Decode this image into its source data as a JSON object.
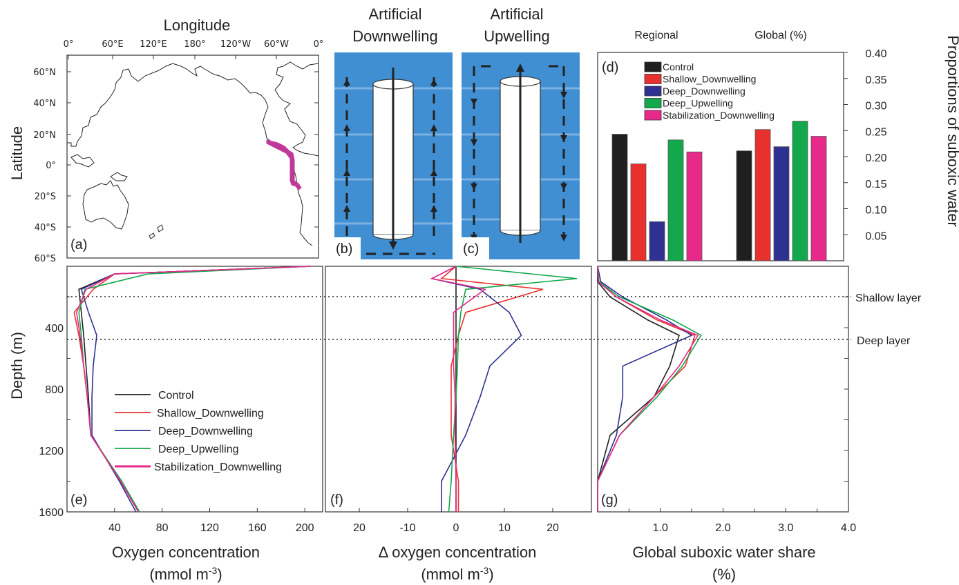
{
  "colors": {
    "Control": "#1f1f1f",
    "Shallow_Downwelling": "#e8302f",
    "Deep_Downwelling": "#2e3192",
    "Deep_Upwelling": "#12a84b",
    "Stabilization_Downwelling": "#e7298a",
    "diagram_bg": "#3f8fd2",
    "coast_highlight": "#c0399a"
  },
  "map": {
    "title": "Longitude",
    "ylabel": "Latitude",
    "panel": "(a)",
    "lon_ticks": [
      "0°",
      "60°E",
      "120°E",
      "180°",
      "120°W",
      "60°W",
      "0°"
    ],
    "lat_ticks": [
      "60°N",
      "40°N",
      "20°N",
      "0°",
      "20°S",
      "40°S",
      "60°S"
    ]
  },
  "diagram_b": {
    "title_line1": "Artificial",
    "title_line2": "Downwelling",
    "panel": "(b)"
  },
  "diagram_c": {
    "title_line1": "Artificial",
    "title_line2": "Upwelling",
    "panel": "(c)"
  },
  "panel_d": {
    "panel": "(d)",
    "label_regional": "Regional",
    "label_global": "Global (%)",
    "ylabel": "Proportions of suboxic water",
    "yticks": [
      "0.40",
      "0.35",
      "0.30",
      "0.25",
      "0.20",
      "0.15",
      "0.10",
      "0.05"
    ]
  },
  "panel_e": {
    "panel": "(e)",
    "xlabel": "Oxygen concentration",
    "xunit_pre": "(mmol m",
    "xunit_sup": "-3",
    "xunit_post": ")",
    "ylabel": "Depth (m)",
    "xticks": [
      "40",
      "80",
      "120",
      "160",
      "200"
    ],
    "yticks": [
      "400",
      "800",
      "1200",
      "1600"
    ]
  },
  "panel_f": {
    "panel": "(f)",
    "xlabel": "Δ oxygen concentration",
    "xunit_pre": "(mmol m",
    "xunit_sup": "-3",
    "xunit_post": ")",
    "xticks": [
      "20",
      "-10",
      "0",
      "10",
      "20"
    ]
  },
  "panel_g": {
    "panel": "(g)",
    "xlabel": "Global suboxic water share",
    "xunit": "(%)",
    "xticks": [
      "1.0",
      "2.0",
      "3.0",
      "4.0"
    ],
    "label_shallow": "Shallow layer",
    "label_deep": "Deep layer"
  },
  "chart_data": [
    {
      "type": "bar",
      "panel": "(d)",
      "categories": [
        "Regional",
        "Global (%)"
      ],
      "series": [
        {
          "name": "Control",
          "values": [
            0.243,
            0.211
          ]
        },
        {
          "name": "Shallow_Downwelling",
          "values": [
            0.186,
            0.252
          ]
        },
        {
          "name": "Deep_Downwelling",
          "values": [
            0.075,
            0.219
          ]
        },
        {
          "name": "Deep_Upwelling",
          "values": [
            0.232,
            0.268
          ]
        },
        {
          "name": "Stabilization_Downwelling",
          "values": [
            0.209,
            0.239
          ]
        }
      ],
      "ylabel": "Proportions of suboxic water",
      "ylim": [
        0,
        0.4
      ],
      "legend": "top-left"
    },
    {
      "type": "line",
      "panel": "(e)",
      "xlabel": "Oxygen concentration",
      "ylabel": "Depth (m)",
      "xlim": [
        0,
        215
      ],
      "ylim": [
        1600,
        0
      ],
      "depth": [
        0,
        50,
        150,
        300,
        450,
        650,
        850,
        1100,
        1400,
        1600
      ],
      "series": [
        {
          "name": "Control",
          "values": [
            205,
            40,
            10,
            12,
            14,
            16,
            18,
            20,
            45,
            60
          ]
        },
        {
          "name": "Shallow_Downwelling",
          "values": [
            205,
            40,
            22,
            6,
            10,
            14,
            17,
            20,
            45,
            60
          ]
        },
        {
          "name": "Deep_Downwelling",
          "values": [
            205,
            40,
            12,
            18,
            25,
            22,
            21,
            21,
            44,
            58
          ]
        },
        {
          "name": "Deep_Upwelling",
          "values": [
            205,
            68,
            15,
            10,
            12,
            14,
            17,
            20,
            46,
            61
          ]
        },
        {
          "name": "Stabilization_Downwelling",
          "values": [
            205,
            40,
            16,
            8,
            11,
            14,
            17,
            20,
            45,
            60
          ]
        }
      ]
    },
    {
      "type": "line",
      "panel": "(f)",
      "xlabel": "Δ oxygen concentration",
      "xlim": [
        -29,
        27
      ],
      "ylim": [
        1600,
        0
      ],
      "depth": [
        0,
        80,
        150,
        300,
        450,
        650,
        850,
        1100,
        1400,
        1600
      ],
      "series": [
        {
          "name": "Control",
          "values": [
            0,
            0,
            0,
            0,
            0,
            0,
            0,
            0,
            0,
            0
          ]
        },
        {
          "name": "Shallow_Downwelling",
          "values": [
            0,
            -3,
            18,
            2,
            0.5,
            -1,
            -1,
            -1,
            0.5,
            0.5
          ]
        },
        {
          "name": "Deep_Downwelling",
          "values": [
            0,
            -5,
            5,
            11,
            13.5,
            7,
            5,
            2,
            -3,
            -3
          ]
        },
        {
          "name": "Deep_Upwelling",
          "values": [
            0,
            25,
            2,
            1,
            0.5,
            0.3,
            0,
            -0.5,
            -1,
            -1.5
          ]
        },
        {
          "name": "Stabilization_Downwelling",
          "values": [
            0,
            -5,
            6,
            -0.5,
            -0.5,
            -0.5,
            -0.2,
            -0.2,
            0,
            0
          ]
        }
      ]
    },
    {
      "type": "line",
      "panel": "(g)",
      "xlabel": "Global suboxic water share",
      "xlim": [
        0,
        4
      ],
      "ylim": [
        1600,
        0
      ],
      "depth": [
        0,
        100,
        200,
        350,
        450,
        650,
        850,
        1100,
        1400,
        1600
      ],
      "series": [
        {
          "name": "Control",
          "values": [
            0,
            0,
            0.2,
            0.8,
            1.3,
            1.15,
            0.9,
            0.2,
            0,
            0
          ]
        },
        {
          "name": "Shallow_Downwelling",
          "values": [
            0,
            0.02,
            0.3,
            0.95,
            1.55,
            1.4,
            0.9,
            0.35,
            0,
            0
          ]
        },
        {
          "name": "Deep_Downwelling",
          "values": [
            0,
            0.05,
            0.4,
            1.1,
            1.5,
            0.4,
            0.4,
            0.3,
            0,
            0
          ]
        },
        {
          "name": "Deep_Upwelling",
          "values": [
            0,
            0.02,
            0.35,
            1.2,
            1.65,
            1.35,
            0.95,
            0.35,
            0,
            0
          ]
        },
        {
          "name": "Stabilization_Downwelling",
          "values": [
            0,
            0.01,
            0.3,
            1.0,
            1.6,
            1.3,
            0.9,
            0.35,
            0,
            0
          ]
        }
      ],
      "reference_lines": [
        "Shallow layer",
        "Deep layer"
      ]
    }
  ]
}
